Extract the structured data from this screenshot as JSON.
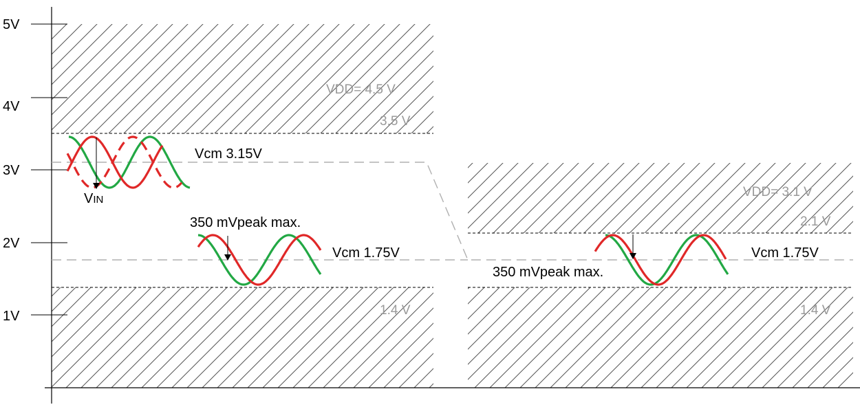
{
  "colors": {
    "hatch": "#555555",
    "positive_wave": "#e02828",
    "negative_wave": "#22a844",
    "dashed_limit": "#000000",
    "vcm_dashed": "#b0b0b0",
    "grey_text": "#9a9a9a"
  },
  "y_axis": {
    "ticks": [
      "5V",
      "4V",
      "3V",
      "2V",
      "1V"
    ]
  },
  "left_panel": {
    "vdd_label": "VDD= 4.5 V",
    "upper_limit_label": "3.5 V",
    "lower_limit_label": "1.4 V",
    "input_vcm_label": "Vcm 3.15V",
    "output_vcm_label": "Vcm 1.75V",
    "swing_label": "350 mVpeak max.",
    "vin_label_main": "V",
    "vin_label_sub": "IN"
  },
  "right_panel": {
    "vdd_label": "VDD= 3.1 V",
    "upper_limit_label": "2.1 V",
    "lower_limit_label": "1.4 V",
    "vcm_label": "Vcm 1.75V",
    "swing_label": "350 mVpeak max."
  }
}
